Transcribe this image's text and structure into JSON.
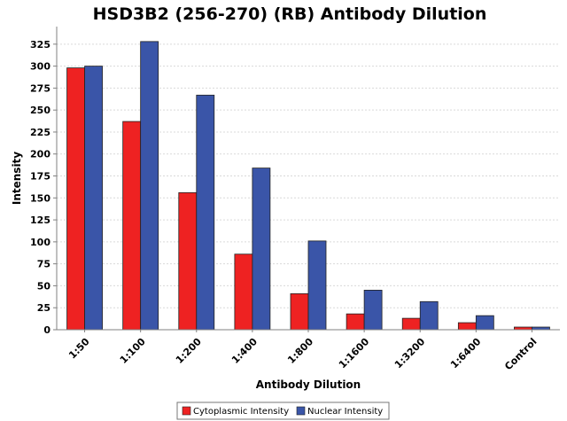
{
  "chart_data": {
    "type": "bar",
    "title": "HSD3B2 (256-270) (RB) Antibody Dilution",
    "xlabel": "Antibody Dilution",
    "ylabel": "Intensity",
    "ylim": [
      0,
      345
    ],
    "yticks": [
      0,
      25,
      50,
      75,
      100,
      125,
      150,
      175,
      200,
      225,
      250,
      275,
      300,
      325
    ],
    "grid": true,
    "legend_position": "bottom",
    "categories": [
      "1:50",
      "1:100",
      "1:200",
      "1:400",
      "1:800",
      "1:1600",
      "1:3200",
      "1:6400",
      "Control"
    ],
    "series": [
      {
        "name": "Cytoplasmic Intensity",
        "color": "#ee2222",
        "values": [
          298,
          237,
          156,
          86,
          41,
          18,
          13,
          8,
          3
        ]
      },
      {
        "name": "Nuclear Intensity",
        "color": "#3a55a8",
        "values": [
          300,
          328,
          267,
          184,
          101,
          45,
          32,
          16,
          3
        ]
      }
    ]
  }
}
